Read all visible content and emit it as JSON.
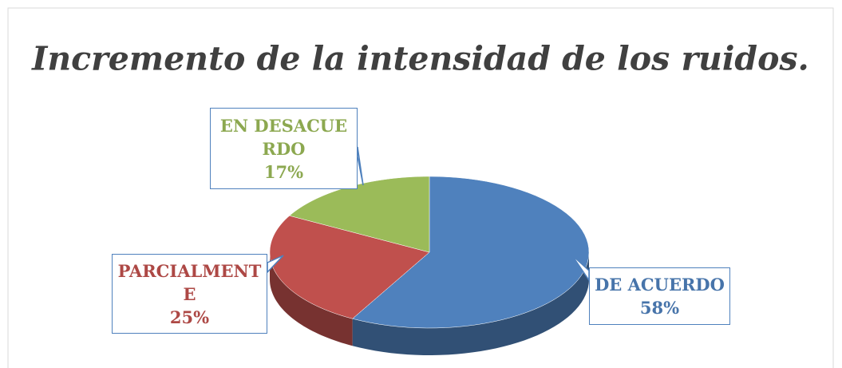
{
  "chart_data": {
    "type": "pie",
    "title": "Incremento de la intensidad de los ruidos.",
    "categories": [
      "DE ACUERDO",
      "PARCIALMENTE",
      "EN DESACUERDO"
    ],
    "values": [
      58,
      25,
      17
    ],
    "value_labels": [
      "58%",
      "25%",
      "17%"
    ],
    "colors": [
      "#4f81bd",
      "#c0504d",
      "#9bbb59"
    ]
  }
}
